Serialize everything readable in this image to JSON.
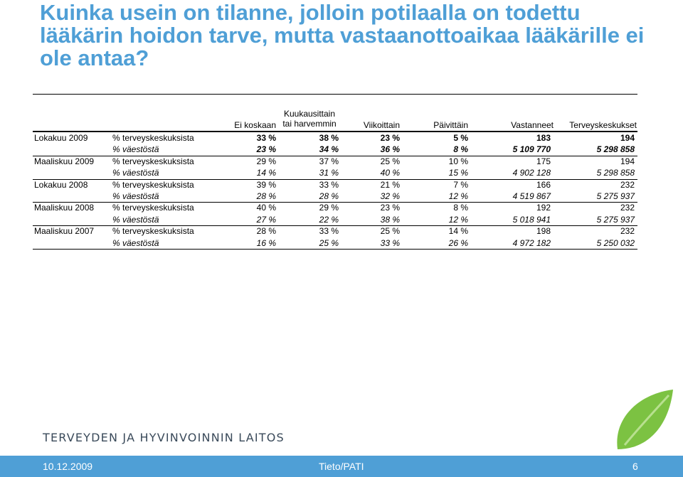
{
  "title": "Kuinka usein on tilanne, jolloin potilaalla on todettu lääkärin hoidon tarve, mutta vastaanottoaikaa lääkärille ei ole antaa?",
  "table": {
    "headers": {
      "ei_koskaan": "Ei koskaan",
      "kuukausittain_1": "Kuukausittain",
      "kuukausittain_2": "tai harvemmin",
      "viikoittain": "Viikoittain",
      "paivittain": "Päivittäin",
      "vastanneet": "Vastanneet",
      "terveyskeskukset": "Terveyskeskukset"
    },
    "rows": [
      {
        "period": "Lokakuu 2009",
        "type": "% terveyskeskuksista",
        "v": [
          "33 %",
          "38 %",
          "23 %",
          "5 %",
          "183",
          "194"
        ]
      },
      {
        "period": "",
        "type": "% väestöstä",
        "v": [
          "23 %",
          "34 %",
          "36 %",
          "8 %",
          "5 109 770",
          "5 298 858"
        ]
      },
      {
        "period": "Maaliskuu 2009",
        "type": "% terveyskeskuksista",
        "v": [
          "29 %",
          "37 %",
          "25 %",
          "10 %",
          "175",
          "194"
        ]
      },
      {
        "period": "",
        "type": "% väestöstä",
        "v": [
          "14 %",
          "31 %",
          "40 %",
          "15 %",
          "4 902 128",
          "5 298 858"
        ]
      },
      {
        "period": "Lokakuu 2008",
        "type": "% terveyskeskuksista",
        "v": [
          "39 %",
          "33 %",
          "21 %",
          "7 %",
          "166",
          "232"
        ]
      },
      {
        "period": "",
        "type": "% väestöstä",
        "v": [
          "28 %",
          "28 %",
          "32 %",
          "12 %",
          "4 519 867",
          "5 275 937"
        ]
      },
      {
        "period": "Maaliskuu 2008",
        "type": "% terveyskeskuksista",
        "v": [
          "40 %",
          "29 %",
          "23 %",
          "8 %",
          "192",
          "232"
        ]
      },
      {
        "period": "",
        "type": "% väestöstä",
        "v": [
          "27 %",
          "22 %",
          "38 %",
          "12 %",
          "5 018 941",
          "5 275 937"
        ]
      },
      {
        "period": "Maaliskuu 2007",
        "type": "% terveyskeskuksista",
        "v": [
          "28 %",
          "33 %",
          "25 %",
          "14 %",
          "198",
          "232"
        ]
      },
      {
        "period": "",
        "type": "% väestöstä",
        "v": [
          "16 %",
          "25 %",
          "33 %",
          "26 %",
          "4 972 182",
          "5 250 032"
        ]
      }
    ]
  },
  "logo_text": "TERVEYDEN JA HYVINVOINNIN LAITOS",
  "footer": {
    "date": "10.12.2009",
    "org": "Tieto/PATI",
    "page": "6"
  },
  "colors": {
    "accent": "#4f9fd6",
    "leaf": "#7cc242"
  },
  "icons": {
    "logo": "green-leaf-icon"
  }
}
